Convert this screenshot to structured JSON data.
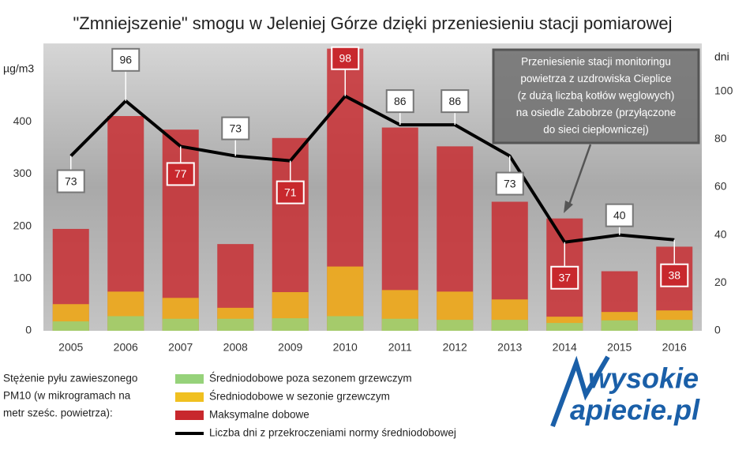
{
  "chart_data": {
    "type": "bar-line",
    "title": "\"Zmniejszenie\" smogu w Jeleniej Górze dzięki przeniesieniu stacji pomiarowej",
    "y_label": "µg/m3",
    "y2_label": "dni",
    "categories": [
      "2005",
      "2006",
      "2007",
      "2008",
      "2009",
      "2010",
      "2011",
      "2012",
      "2013",
      "2014",
      "2015",
      "2016"
    ],
    "ylim": [
      0,
      550
    ],
    "yticks": [
      0,
      100,
      200,
      300,
      400
    ],
    "y2lim": [
      0,
      120
    ],
    "y2ticks": [
      0,
      20,
      40,
      60,
      80,
      100
    ],
    "series": [
      {
        "name": "Maksymalne dobowe",
        "type": "bar",
        "color": "#c8282d",
        "values": [
          195,
          411,
          385,
          166,
          369,
          540,
          389,
          353,
          247,
          215,
          114,
          161
        ]
      },
      {
        "name": "Średniodobowe w sezonie grzewczym",
        "type": "bar",
        "color": "#f0c020",
        "values": [
          51,
          75,
          63,
          44,
          74,
          123,
          78,
          75,
          60,
          27,
          36,
          39
        ]
      },
      {
        "name": "Średniodobowe poza sezonem grzewczym",
        "type": "bar",
        "color": "#96d27a",
        "values": [
          18,
          28,
          23,
          23,
          24,
          28,
          23,
          21,
          21,
          15,
          20,
          21
        ]
      },
      {
        "name": "Liczba dni z przekroczeniami normy średniodobowej",
        "type": "line",
        "axis": "y2",
        "color": "#000000",
        "values": [
          73,
          96,
          77,
          73,
          71,
          98,
          86,
          86,
          73,
          37,
          40,
          38
        ]
      }
    ],
    "legend_title": [
      "Stężenie pyłu zawieszonego",
      "PM10 (w mikrogramach na",
      "metr sześc. powietrza):"
    ],
    "annotation": [
      "Przeniesienie stacji monitoringu",
      "powietrza z uzdrowiska Cieplice",
      "(z dużą liczbą kotłów węglowych)",
      "na osiedle Zabobrze (przyłączone",
      "do sieci ciepłowniczej)"
    ],
    "logo": [
      "wysokie",
      "apiecie.pl"
    ]
  }
}
